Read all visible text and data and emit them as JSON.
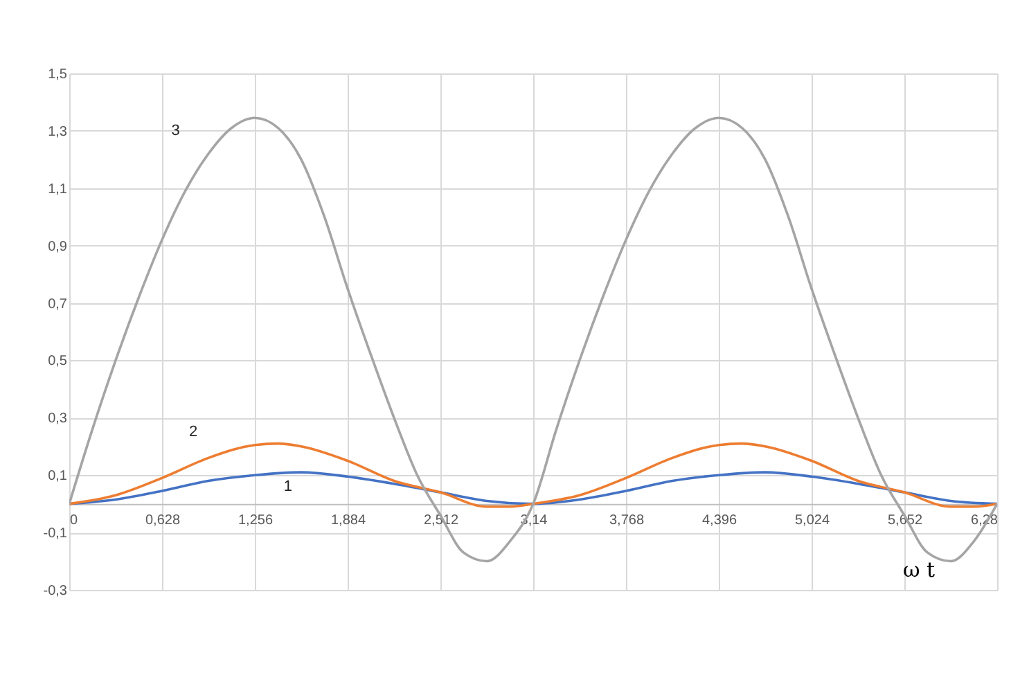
{
  "chart_data": {
    "type": "line",
    "xlabel": "ω t",
    "xlim": [
      0,
      6.28
    ],
    "ylim": [
      -0.3,
      1.5
    ],
    "xticks": [
      0,
      {
        "value": 0.628,
        "label": "0,628"
      },
      {
        "value": 1.256,
        "label": "1,256"
      },
      {
        "value": 1.884,
        "label": "1,884"
      },
      {
        "value": 2.512,
        "label": "2,512"
      },
      {
        "value": 3.14,
        "label": "3,14"
      },
      {
        "value": 3.768,
        "label": "3,768"
      },
      {
        "value": 4.396,
        "label": "4,396"
      },
      {
        "value": 5.024,
        "label": "5,024"
      },
      {
        "value": 5.652,
        "label": "5,652"
      },
      {
        "value": 6.28,
        "label": "6,28"
      }
    ],
    "yticks": [
      {
        "value": -0.3,
        "label": "-0,3"
      },
      {
        "value": -0.1,
        "label": "-0,1"
      },
      {
        "value": 0.1,
        "label": "0,1"
      },
      {
        "value": 0.3,
        "label": "0,3"
      },
      {
        "value": 0.5,
        "label": "0,5"
      },
      {
        "value": 0.7,
        "label": "0,7"
      },
      {
        "value": 0.9,
        "label": "0,9"
      },
      {
        "value": 1.1,
        "label": "1,1"
      },
      {
        "value": 1.3,
        "label": "1,3"
      },
      {
        "value": 1.5,
        "label": "1,5"
      }
    ],
    "grid": true,
    "legend": false,
    "marker": "none",
    "line_style": "solid",
    "series": [
      {
        "name": "1",
        "color": "#4472c4",
        "x": [
          0,
          0.314,
          0.628,
          0.942,
          1.256,
          1.57,
          1.884,
          2.198,
          2.512,
          2.826,
          3.14,
          3.454,
          3.768,
          4.082,
          4.396,
          4.71,
          5.024,
          5.338,
          5.652,
          5.966,
          6.28
        ],
        "values": [
          0,
          0.015,
          0.045,
          0.08,
          0.1,
          0.11,
          0.095,
          0.07,
          0.04,
          0.01,
          0,
          0.015,
          0.045,
          0.08,
          0.1,
          0.11,
          0.095,
          0.07,
          0.04,
          0.01,
          0
        ]
      },
      {
        "name": "2",
        "color": "#ed7d31",
        "x": [
          0,
          0.314,
          0.628,
          0.942,
          1.256,
          1.413,
          1.57,
          1.884,
          2.198,
          2.512,
          2.826,
          2.983,
          3.14,
          3.454,
          3.768,
          4.082,
          4.396,
          4.553,
          4.71,
          5.024,
          5.338,
          5.652,
          5.966,
          6.123,
          6.28
        ],
        "values": [
          0,
          0.03,
          0.09,
          0.16,
          0.205,
          0.21,
          0.2,
          0.15,
          0.08,
          0.04,
          -0.01,
          -0.01,
          0,
          0.03,
          0.09,
          0.16,
          0.205,
          0.21,
          0.2,
          0.15,
          0.08,
          0.04,
          -0.01,
          -0.01,
          0
        ]
      },
      {
        "name": "3",
        "color": "#a5a5a5",
        "x": [
          0,
          0.157,
          0.314,
          0.471,
          0.628,
          0.785,
          0.942,
          1.099,
          1.256,
          1.413,
          1.57,
          1.727,
          1.884,
          2.041,
          2.198,
          2.355,
          2.512,
          2.669,
          2.826,
          2.983,
          3.14,
          3.297,
          3.454,
          3.611,
          3.768,
          3.925,
          4.082,
          4.239,
          4.396,
          4.553,
          4.71,
          4.867,
          5.024,
          5.181,
          5.338,
          5.495,
          5.652,
          5.809,
          5.966,
          6.123,
          6.28
        ],
        "values": [
          0,
          0.26,
          0.5,
          0.72,
          0.92,
          1.09,
          1.22,
          1.31,
          1.345,
          1.31,
          1.2,
          1.0,
          0.75,
          0.52,
          0.3,
          0.1,
          -0.04,
          -0.17,
          -0.2,
          -0.13,
          0,
          0.26,
          0.5,
          0.72,
          0.92,
          1.09,
          1.22,
          1.31,
          1.345,
          1.31,
          1.2,
          1.0,
          0.75,
          0.52,
          0.3,
          0.1,
          -0.04,
          -0.17,
          -0.2,
          -0.13,
          0
        ]
      }
    ]
  }
}
